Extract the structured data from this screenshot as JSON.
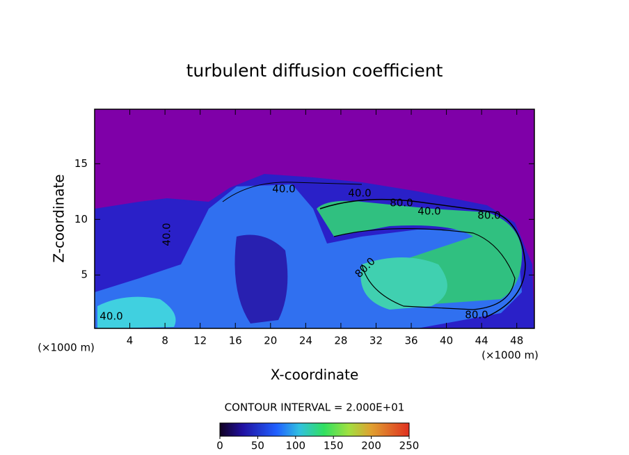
{
  "chart_data": {
    "type": "contour",
    "title": "turbulent diffusion coefficient",
    "x_label": "X-coordinate",
    "y_label": "Z-coordinate",
    "x_unit": "(×1000 m)",
    "y_unit": "(×1000 m)",
    "xlim": [
      0,
      50
    ],
    "xticks": [
      4,
      8,
      12,
      16,
      20,
      24,
      28,
      32,
      36,
      40,
      44,
      48
    ],
    "ylim": [
      0.2,
      19.9
    ],
    "yticks": [
      5,
      10,
      15
    ],
    "contour_labels": [
      "40.0",
      "40.0",
      "40.0",
      "80.0",
      "40.0",
      "80.0",
      "80.0",
      "80.0",
      "40.0"
    ],
    "contour_interval_label": "CONTOUR INTERVAL = 2.000E+01",
    "colorbar": {
      "lim": [
        0,
        250
      ],
      "ticks": [
        0,
        50,
        100,
        150,
        200,
        250
      ]
    }
  }
}
